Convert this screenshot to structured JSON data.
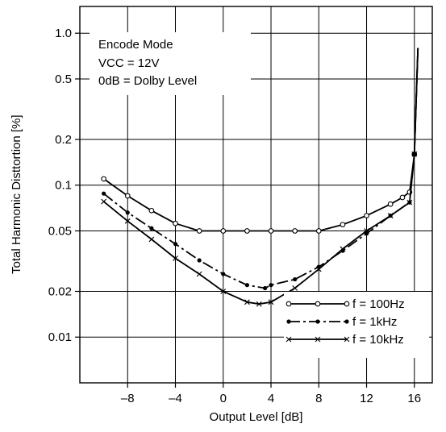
{
  "chart_data": {
    "type": "line",
    "title": "",
    "xlabel": "Output Level [dB]",
    "ylabel": "Total Harmonic Disttortion [%]",
    "xlim": [
      -12,
      17.5
    ],
    "ylim": [
      0.005,
      1.5
    ],
    "yscale": "log",
    "grid": true,
    "x_ticks": [
      -8,
      -4,
      0,
      4,
      8,
      12,
      16
    ],
    "x_tick_labels": [
      "–8",
      "–4",
      "0",
      "4",
      "8",
      "12",
      "16"
    ],
    "y_ticks": [
      0.01,
      0.02,
      0.05,
      0.1,
      0.2,
      0.5,
      1.0
    ],
    "y_tick_labels": [
      "0.01",
      "0.02",
      "0.05",
      "0.1",
      "0.2",
      "0.5",
      "1.0"
    ],
    "legend_position": "bottom-right",
    "annotations": [
      "Encode Mode",
      "VCC = 12V",
      "0dB = Dolby Level"
    ],
    "series": [
      {
        "name": "f = 100Hz",
        "marker": "circle",
        "line_style": "solid",
        "x": [
          -10,
          -8,
          -6,
          -4,
          -2,
          0,
          2,
          4,
          6,
          8,
          10,
          12,
          14,
          15,
          15.6,
          16,
          16.3
        ],
        "y": [
          0.11,
          0.085,
          0.068,
          0.056,
          0.05,
          0.05,
          0.05,
          0.05,
          0.05,
          0.05,
          0.055,
          0.063,
          0.075,
          0.083,
          0.09,
          0.16,
          0.8
        ]
      },
      {
        "name": "f = 1kHz",
        "marker": "dot",
        "line_style": "dash-dot",
        "x": [
          -10,
          -8,
          -6,
          -4,
          -2,
          0,
          2,
          3.5,
          4,
          6,
          8,
          10,
          12,
          14,
          15.6,
          16,
          16.3
        ],
        "y": [
          0.088,
          0.066,
          0.052,
          0.041,
          0.032,
          0.026,
          0.022,
          0.021,
          0.022,
          0.024,
          0.029,
          0.037,
          0.048,
          0.063,
          0.077,
          0.16,
          0.8
        ]
      },
      {
        "name": "f = 10kHz",
        "marker": "x",
        "line_style": "solid",
        "x": [
          -10,
          -8,
          -6,
          -4,
          -2,
          0,
          2,
          3,
          4,
          6,
          8,
          10,
          12,
          14,
          15.6,
          16,
          16.3
        ],
        "y": [
          0.078,
          0.058,
          0.044,
          0.033,
          0.026,
          0.02,
          0.017,
          0.0165,
          0.017,
          0.021,
          0.028,
          0.038,
          0.05,
          0.063,
          0.077,
          0.16,
          0.8
        ]
      }
    ]
  },
  "colors": {
    "line": "#000000",
    "grid": "#000000",
    "background": "#ffffff"
  }
}
